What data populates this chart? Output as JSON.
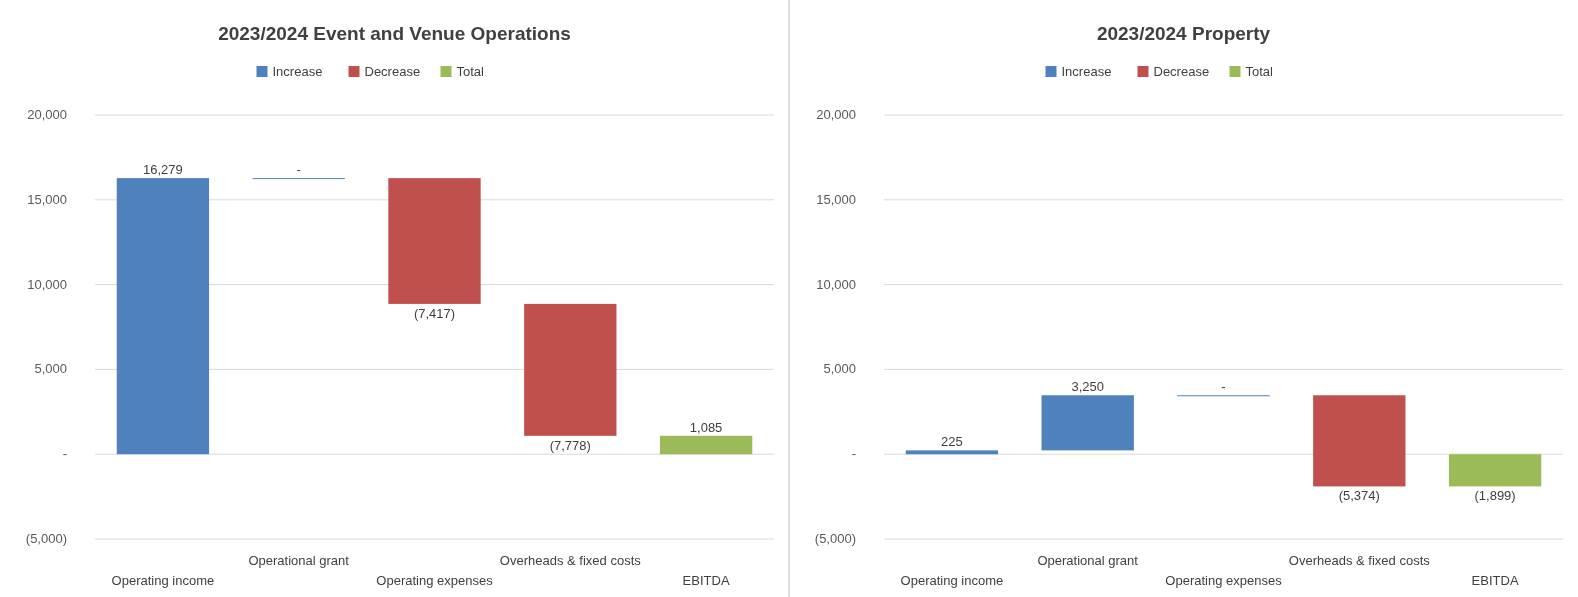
{
  "chart_data": [
    {
      "type": "bar",
      "title": "2023/2024 Event and Venue Operations",
      "categories": [
        "Operating income",
        "Operational grant",
        "Operating expenses",
        "Overheads & fixed costs",
        "EBITDA"
      ],
      "series": [
        {
          "name": "Increase",
          "color": "#4f81bd",
          "values": [
            16279,
            0,
            null,
            null,
            null
          ],
          "base": [
            0,
            16279,
            null,
            null,
            null
          ],
          "value_labels": [
            "16,279",
            "-",
            null,
            null,
            null
          ]
        },
        {
          "name": "Decrease",
          "color": "#c0504d",
          "values": [
            null,
            null,
            -7417,
            -7778,
            null
          ],
          "base": [
            null,
            null,
            16279,
            8862,
            null
          ],
          "value_labels": [
            null,
            null,
            "(7,417)",
            "(7,778)",
            null
          ]
        },
        {
          "name": "Total",
          "color": "#9bbb59",
          "values": [
            null,
            null,
            null,
            null,
            1085
          ],
          "base": [
            null,
            null,
            null,
            null,
            0
          ],
          "value_labels": [
            null,
            null,
            null,
            null,
            "1,085"
          ]
        }
      ],
      "ylim": [
        -5000,
        20000
      ],
      "yticks": [
        {
          "value": -5000,
          "label": "(5,000)"
        },
        {
          "value": 0,
          "label": "-"
        },
        {
          "value": 5000,
          "label": "5,000"
        },
        {
          "value": 10000,
          "label": "10,000"
        },
        {
          "value": 15000,
          "label": "15,000"
        },
        {
          "value": 20000,
          "label": "20,000"
        }
      ],
      "grid": "y",
      "legend": "top"
    },
    {
      "type": "bar",
      "title": "2023/2024 Property",
      "categories": [
        "Operating income",
        "Operational grant",
        "Operating expenses",
        "Overheads & fixed costs",
        "EBITDA"
      ],
      "series": [
        {
          "name": "Increase",
          "color": "#4f81bd",
          "values": [
            225,
            3250,
            0,
            null,
            null
          ],
          "base": [
            0,
            225,
            3475,
            null,
            null
          ],
          "value_labels": [
            "225",
            "3,250",
            "-",
            null,
            null
          ]
        },
        {
          "name": "Decrease",
          "color": "#c0504d",
          "values": [
            null,
            null,
            null,
            -5374,
            null
          ],
          "base": [
            null,
            null,
            null,
            3475,
            null
          ],
          "value_labels": [
            null,
            null,
            null,
            "(5,374)",
            null
          ]
        },
        {
          "name": "Total",
          "color": "#9bbb59",
          "values": [
            null,
            null,
            null,
            null,
            -1899
          ],
          "base": [
            null,
            null,
            null,
            null,
            0
          ],
          "value_labels": [
            null,
            null,
            null,
            null,
            "(1,899)"
          ]
        }
      ],
      "ylim": [
        -5000,
        20000
      ],
      "yticks": [
        {
          "value": -5000,
          "label": "(5,000)"
        },
        {
          "value": 0,
          "label": "-"
        },
        {
          "value": 5000,
          "label": "5,000"
        },
        {
          "value": 10000,
          "label": "10,000"
        },
        {
          "value": 15000,
          "label": "15,000"
        },
        {
          "value": 20000,
          "label": "20,000"
        }
      ],
      "grid": "y",
      "legend": "top"
    }
  ]
}
